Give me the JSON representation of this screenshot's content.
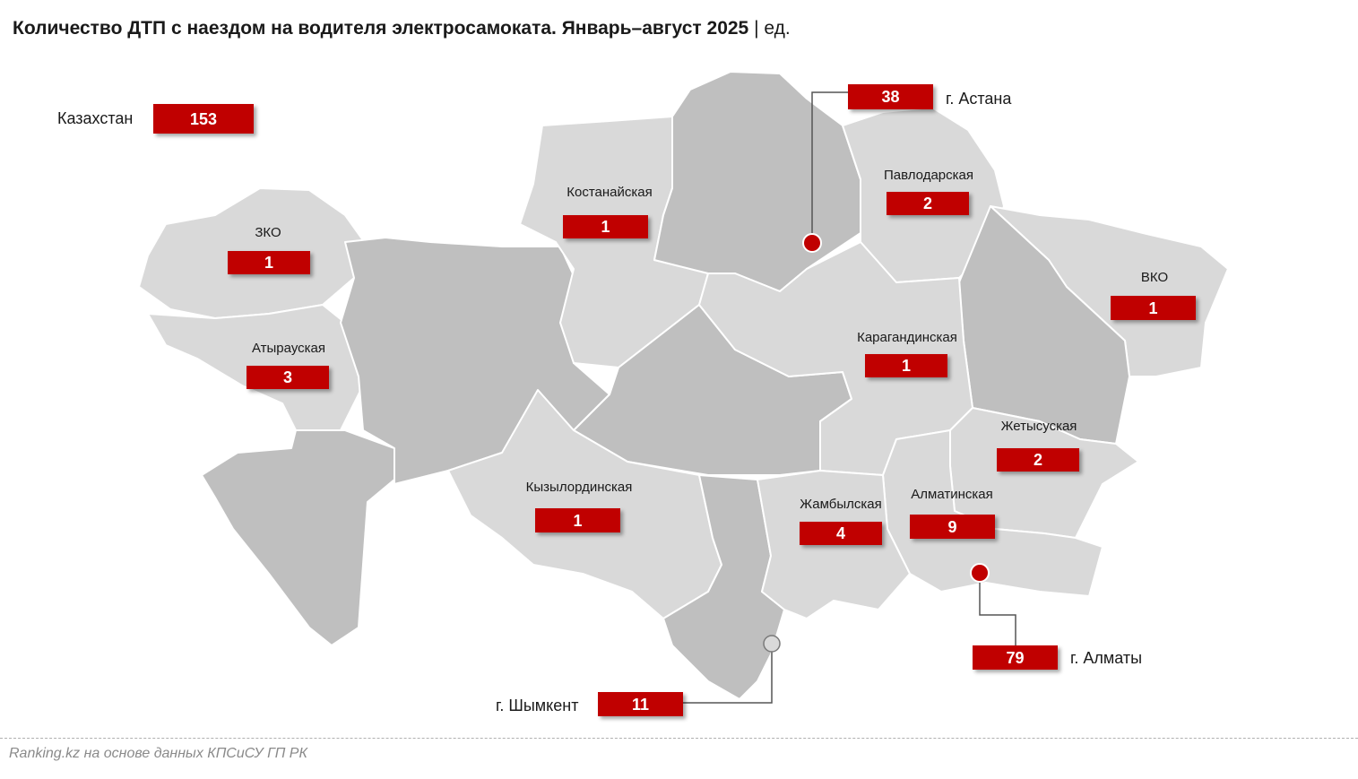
{
  "title": {
    "main": "Количество ДТП с наездом на водителя электросамоката. Январь–август 2025",
    "separator": "|",
    "unit": "ед."
  },
  "colors": {
    "badge": "#c00000",
    "region_light": "#d9d9d9",
    "region_dark": "#bfbfbf",
    "border": "#ffffff",
    "marker": "#c00000"
  },
  "total": {
    "label": "Казахстан",
    "value": "153"
  },
  "regions": {
    "zko": {
      "name": "ЗКО",
      "value": "1"
    },
    "atyrau": {
      "name": "Атырауская",
      "value": "3"
    },
    "kostanay": {
      "name": "Костанайская",
      "value": "1"
    },
    "pavlodar": {
      "name": "Павлодарская",
      "value": "2"
    },
    "vko": {
      "name": "ВКО",
      "value": "1"
    },
    "karaganda": {
      "name": "Карагандинская",
      "value": "1"
    },
    "zhetysu": {
      "name": "Жетысуская",
      "value": "2"
    },
    "kyzylorda": {
      "name": "Кызылординская",
      "value": "1"
    },
    "zhambyl": {
      "name": "Жамбылская",
      "value": "4"
    },
    "almaty_region": {
      "name": "Алматинская",
      "value": "9"
    }
  },
  "cities": {
    "astana": {
      "name": "г. Астана",
      "value": "38"
    },
    "almaty": {
      "name": "г. Алматы",
      "value": "79"
    },
    "shymkent": {
      "name": "г. Шымкент",
      "value": "11"
    }
  },
  "source": "Ranking.kz на основе данных КПСиСУ ГП РК"
}
